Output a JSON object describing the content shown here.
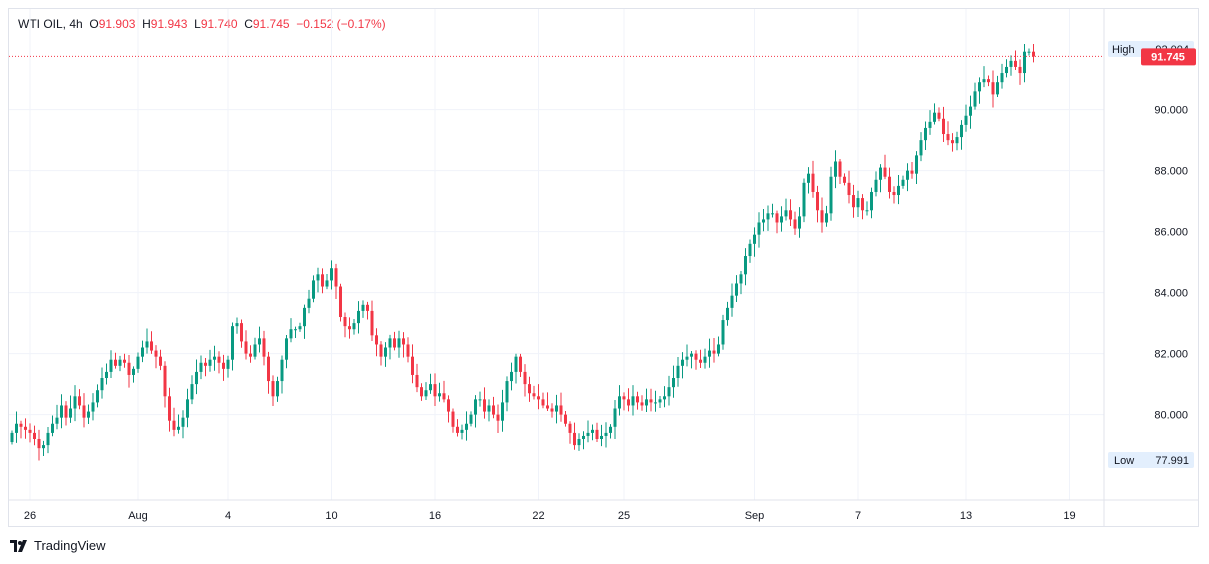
{
  "header": {
    "symbol": "WTI OIL",
    "interval": "4h",
    "open_label": "O",
    "open": "91.903",
    "high_label": "H",
    "high": "91.943",
    "low_label": "L",
    "low": "91.740",
    "close_label": "C",
    "close": "91.745",
    "change": "−0.152 (−0.17%)"
  },
  "brand": {
    "name": "TradingView"
  },
  "colors": {
    "up": "#089981",
    "down": "#f23645",
    "grid": "#f0f3fa",
    "tag_bg": "#e3effd"
  },
  "chart_data": {
    "type": "candlestick",
    "title": "WTI OIL, 4h",
    "ylim": [
      77.2,
      93.3
    ],
    "y_ticks": [
      "80.000",
      "82.000",
      "84.000",
      "86.000",
      "88.000",
      "90.000"
    ],
    "x_ticks": [
      {
        "label": "26",
        "i": 4
      },
      {
        "label": "Aug",
        "i": 28
      },
      {
        "label": "4",
        "i": 48
      },
      {
        "label": "10",
        "i": 71
      },
      {
        "label": "16",
        "i": 94
      },
      {
        "label": "22",
        "i": 117
      },
      {
        "label": "25",
        "i": 136
      },
      {
        "label": "Sep",
        "i": 165
      },
      {
        "label": "7",
        "i": 188
      },
      {
        "label": "13",
        "i": 212
      },
      {
        "label": "19",
        "i": 235
      }
    ],
    "high_tag": {
      "label": "High",
      "value": "92.004"
    },
    "low_tag": {
      "label": "Low",
      "value": "77.991"
    },
    "last_price": {
      "value": "91.745",
      "num": 91.745
    },
    "closes": [
      79.4,
      79.7,
      79.6,
      79.5,
      79.4,
      79.2,
      78.9,
      79.0,
      79.4,
      79.7,
      79.9,
      80.3,
      79.9,
      80.2,
      80.6,
      80.3,
      79.9,
      80.1,
      80.4,
      80.8,
      81.2,
      81.4,
      81.8,
      81.6,
      81.8,
      81.7,
      81.3,
      81.5,
      81.9,
      82.2,
      82.4,
      82.1,
      81.9,
      81.6,
      80.6,
      79.8,
      79.5,
      79.6,
      79.9,
      80.5,
      81.0,
      81.4,
      81.7,
      81.6,
      81.8,
      81.9,
      81.7,
      81.5,
      81.8,
      82.9,
      83.0,
      82.4,
      82.0,
      81.9,
      82.3,
      82.5,
      81.9,
      81.1,
      80.6,
      81.1,
      81.8,
      82.5,
      82.8,
      82.8,
      82.9,
      83.5,
      83.8,
      84.4,
      84.6,
      84.2,
      84.4,
      84.8,
      84.2,
      83.2,
      82.9,
      82.8,
      83.0,
      83.4,
      83.6,
      83.4,
      82.6,
      82.3,
      81.9,
      82.2,
      82.5,
      82.2,
      82.5,
      82.3,
      81.9,
      81.3,
      80.9,
      80.6,
      80.8,
      81.0,
      80.6,
      80.7,
      80.5,
      80.1,
      79.6,
      79.4,
      79.5,
      79.7,
      80.0,
      80.5,
      80.5,
      80.1,
      80.3,
      80.0,
      79.8,
      80.4,
      81.1,
      81.4,
      81.9,
      81.4,
      81.0,
      80.7,
      80.6,
      80.5,
      80.3,
      80.2,
      80.1,
      80.3,
      80.0,
      79.7,
      79.4,
      79.0,
      79.2,
      79.3,
      79.4,
      79.5,
      79.2,
      79.3,
      79.4,
      79.6,
      80.2,
      80.6,
      80.5,
      80.3,
      80.6,
      80.4,
      80.3,
      80.5,
      80.4,
      80.4,
      80.5,
      80.6,
      80.9,
      81.2,
      81.6,
      81.8,
      81.9,
      82.0,
      81.8,
      81.7,
      81.9,
      82.1,
      82.0,
      82.3,
      83.1,
      83.5,
      83.9,
      84.3,
      84.6,
      85.2,
      85.6,
      85.9,
      86.3,
      86.4,
      86.6,
      86.6,
      86.3,
      86.5,
      86.7,
      86.4,
      86.1,
      86.5,
      87.6,
      87.9,
      87.3,
      86.7,
      86.3,
      86.6,
      87.8,
      88.3,
      87.8,
      87.6,
      87.2,
      86.8,
      87.1,
      86.7,
      86.7,
      87.3,
      87.7,
      88.1,
      87.8,
      87.3,
      87.2,
      87.5,
      87.7,
      88.0,
      87.9,
      88.5,
      89.0,
      89.4,
      89.6,
      89.9,
      89.7,
      89.2,
      89.0,
      88.9,
      89.1,
      89.5,
      89.8,
      90.1,
      90.6,
      90.9,
      91.0,
      90.9,
      90.5,
      90.9,
      91.2,
      91.4,
      91.6,
      91.4,
      91.2,
      91.9,
      91.9,
      91.745
    ]
  }
}
